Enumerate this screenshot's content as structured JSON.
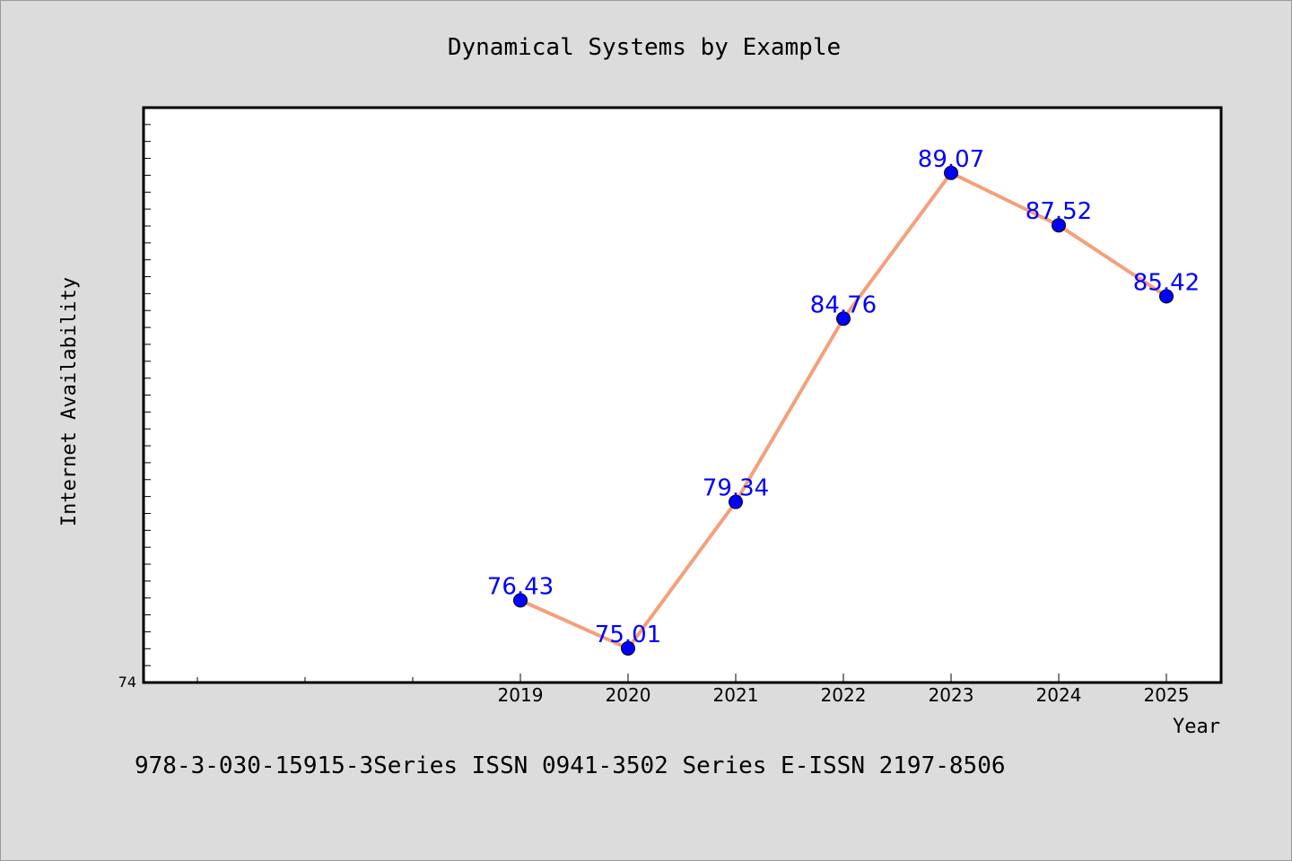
{
  "chart_data": {
    "type": "line",
    "title": "Dynamical Systems by Example",
    "xlabel": "Year",
    "ylabel": "Internet Availability",
    "x": [
      "2019",
      "2020",
      "2021",
      "2022",
      "2023",
      "2024",
      "2025"
    ],
    "series": [
      {
        "values": [
          76.43,
          75.01,
          79.34,
          84.76,
          89.07,
          87.52,
          85.42
        ],
        "line_color": "#f4a07a",
        "marker_color": "#0000ff",
        "label_color": "#0000ff"
      }
    ],
    "ylim": [
      74,
      91
    ],
    "y_tick_labels": [
      "74"
    ],
    "data_labels": [
      "76.43",
      "75.01",
      "79.34",
      "84.76",
      "89.07",
      "87.52",
      "85.42"
    ],
    "grid": false,
    "legend": false
  },
  "footer": {
    "text": "978-3-030-15915-3Series ISSN 0941-3502 Series E-ISSN 2197-8506"
  },
  "colors": {
    "background": "#dcdcdc",
    "plot_background": "#ffffff",
    "axis": "#000000"
  }
}
